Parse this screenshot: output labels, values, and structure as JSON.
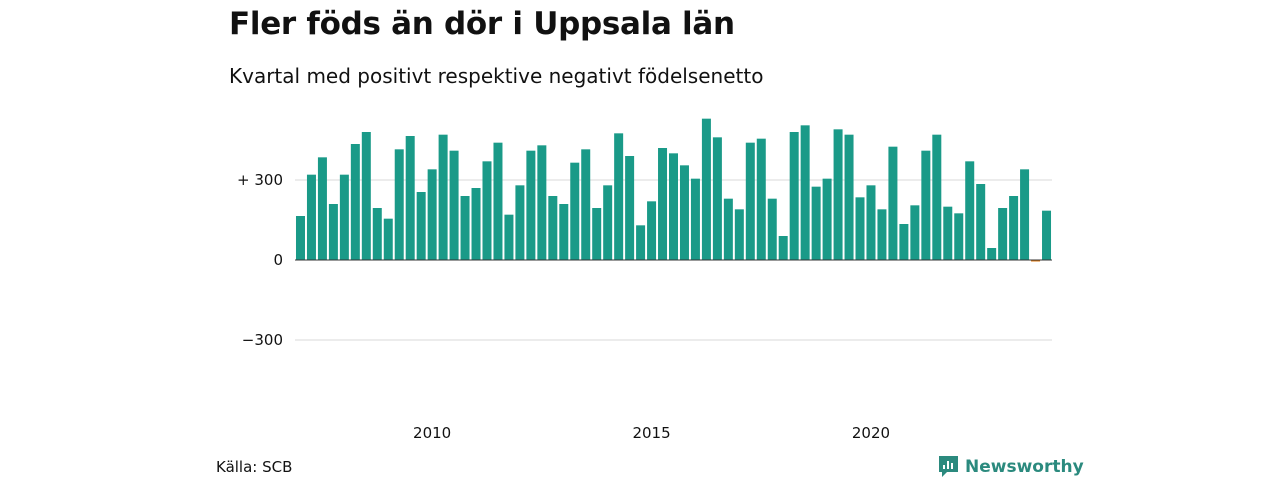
{
  "header": {
    "title": "Fler föds än dör i Uppsala län",
    "subtitle": "Kvartal med positivt respektive negativt födelsenetto"
  },
  "footer": {
    "source": "Källa: SCB",
    "brand": "Newsworthy"
  },
  "colors": {
    "positive": "#1a9a88",
    "negative": "#e07a10",
    "grid": "#d9d9d9",
    "brand": "#2b8a7e"
  },
  "chart_data": {
    "type": "bar",
    "x_start": "2007 Q1",
    "frequency": "quarter",
    "values": [
      165,
      320,
      385,
      210,
      320,
      435,
      480,
      195,
      155,
      415,
      465,
      255,
      340,
      470,
      410,
      240,
      270,
      370,
      440,
      170,
      280,
      410,
      430,
      240,
      210,
      365,
      415,
      195,
      280,
      475,
      390,
      130,
      220,
      420,
      400,
      355,
      305,
      530,
      460,
      230,
      190,
      440,
      455,
      230,
      90,
      480,
      505,
      275,
      305,
      490,
      470,
      235,
      280,
      190,
      425,
      135,
      205,
      410,
      470,
      200,
      175,
      370,
      285,
      45,
      195,
      240,
      340,
      -5,
      185
    ],
    "tick_labels_x": [
      "2010",
      "2015",
      "2020"
    ],
    "tick_labels_y": [
      "+ 300",
      "0",
      "−300"
    ],
    "y_ticks": [
      300,
      0,
      -300
    ],
    "ylim": [
      -450,
      530
    ],
    "grid": true
  }
}
